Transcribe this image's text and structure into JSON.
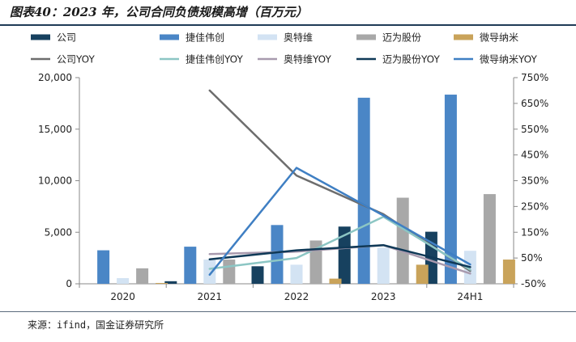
{
  "figure": {
    "title": "图表40：2023 年，公司合同负债规模高增（百万元）",
    "source": "来源：ifind，国金证券研究所"
  },
  "colors": {
    "公司": "#17415f",
    "捷佳伟创": "#4a86c6",
    "奥特维": "#d3e3f3",
    "迈为股份": "#a8a8a8",
    "微导纳米": "#c9a35a",
    "公司YOY": "#6d6d6d",
    "捷佳伟创YOY": "#8cc6c4",
    "奥特维YOY": "#a89aae",
    "迈为股份YOY": "#0f3957",
    "微导纳米YOY": "#3f7fc3"
  },
  "chart_data": {
    "type": "bar+line",
    "title": "2023 年，公司合同负债规模高增（百万元）",
    "categories": [
      "2020",
      "2021",
      "2022",
      "2023",
      "24H1"
    ],
    "y_left": {
      "min": 0,
      "max": 20000,
      "step": 5000,
      "ticks": [
        "0",
        "5,000",
        "10,000",
        "15,000",
        "20,000"
      ]
    },
    "y_right": {
      "min": -50,
      "max": 750,
      "step": 100,
      "ticks": [
        "-50%",
        "50%",
        "150%",
        "250%",
        "350%",
        "450%",
        "550%",
        "650%",
        "750%"
      ]
    },
    "legend_position": "top",
    "bar_series": [
      {
        "name": "公司",
        "values": [
          0,
          250,
          1700,
          5550,
          5050
        ]
      },
      {
        "name": "捷佳伟创",
        "values": [
          3250,
          3600,
          5700,
          18050,
          18350
        ]
      },
      {
        "name": "奥特维",
        "values": [
          550,
          2350,
          1850,
          3500,
          3200
        ]
      },
      {
        "name": "迈为股份",
        "values": [
          1500,
          2350,
          4200,
          8350,
          8700
        ]
      },
      {
        "name": "微导纳米",
        "values": [
          80,
          0,
          500,
          1850,
          2350
        ]
      }
    ],
    "line_series": [
      {
        "name": "公司YOY",
        "values": [
          null,
          700,
          370,
          220,
          0
        ]
      },
      {
        "name": "捷佳伟创YOY",
        "values": [
          null,
          8,
          50,
          210,
          5
        ]
      },
      {
        "name": "奥特维YOY",
        "values": [
          null,
          65,
          75,
          100,
          -10
        ]
      },
      {
        "name": "迈为股份YOY",
        "values": [
          null,
          45,
          80,
          100,
          15
        ]
      },
      {
        "name": "微导纳米YOY",
        "values": [
          null,
          -15,
          400,
          215,
          25
        ]
      }
    ]
  }
}
